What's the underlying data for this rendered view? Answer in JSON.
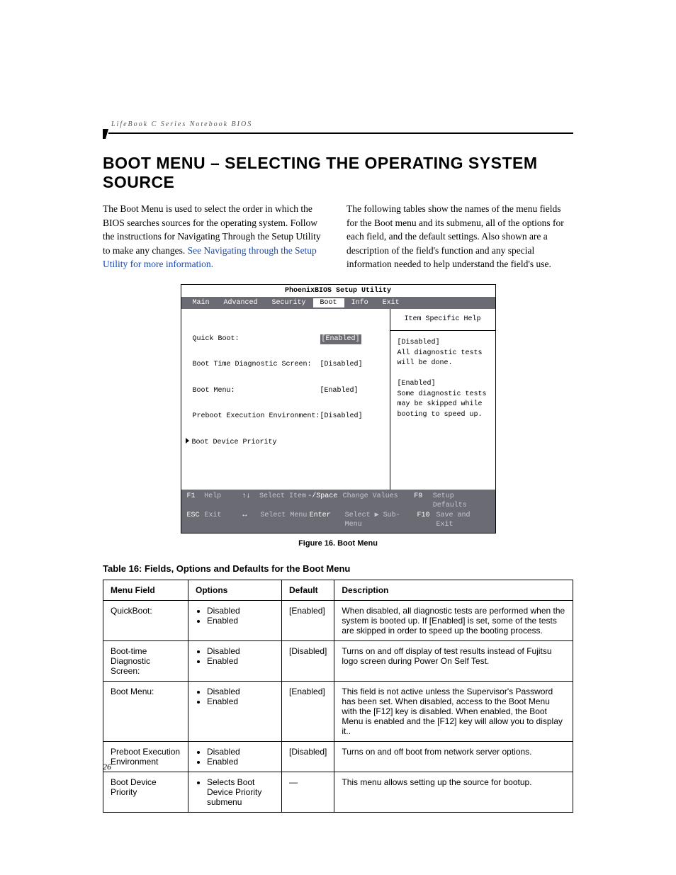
{
  "running_head": "LifeBook C Series Notebook BIOS",
  "title": "BOOT MENU – SELECTING THE OPERATING SYSTEM SOURCE",
  "intro_left_a": "The Boot Menu is used to select the order in which the BIOS searches sources for the operating system. Follow the instructions for Navigating Through the Setup Utility to make any changes. ",
  "intro_left_link": "See Navigating through the Setup Utility for more information.",
  "intro_right": "The following tables show the names of the menu fields for the Boot menu and its submenu, all of the options for each field, and the default settings. Also shown are a description of the field's function and any special information needed to help understand the field's use.",
  "bios": {
    "title": "PhoenixBIOS Setup Utility",
    "tabs": [
      "Main",
      "Advanced",
      "Security",
      "Boot",
      "Info",
      "Exit"
    ],
    "active_tab": "Boot",
    "rows": [
      {
        "label": "Quick Boot:",
        "value": "[Enabled]",
        "hi": true,
        "arrow": false
      },
      {
        "label": "Boot Time Diagnostic Screen:",
        "value": "[Disabled]",
        "hi": false,
        "arrow": false
      },
      {
        "label": "Boot Menu:",
        "value": "[Enabled]",
        "hi": false,
        "arrow": false
      },
      {
        "label": "Preboot Execution Environment:",
        "value": "[Disabled]",
        "hi": false,
        "arrow": false
      },
      {
        "label": "Boot Device Priority",
        "value": "",
        "hi": false,
        "arrow": true
      }
    ],
    "help_title": "Item Specific Help",
    "help_body": "[Disabled]\nAll diagnostic tests will be done.\n\n[Enabled]\nSome diagnostic tests may be skipped while booting to speed up.",
    "footer": [
      [
        "F1",
        "Help",
        "↑↓",
        "Select Item",
        "-/Space",
        "Change Values",
        "F9",
        "Setup Defaults"
      ],
      [
        "ESC",
        "Exit",
        "↔",
        "Select Menu",
        "Enter",
        "Select ▶ Sub-Menu",
        "F10",
        "Save and Exit"
      ]
    ]
  },
  "figure_caption": "Figure 16.  Boot Menu",
  "table_caption": "Table 16: Fields, Options and Defaults for the Boot Menu",
  "table": {
    "headers": [
      "Menu Field",
      "Options",
      "Default",
      "Description"
    ],
    "rows": [
      {
        "field": "QuickBoot:",
        "options": [
          "Disabled",
          "Enabled"
        ],
        "default": "[Enabled]",
        "desc": "When disabled, all diagnostic tests are performed when the system is booted up. If [Enabled] is set, some of the tests are skipped in order to speed up the booting process."
      },
      {
        "field": "Boot-time Diagnostic Screen:",
        "options": [
          "Disabled",
          "Enabled"
        ],
        "default": "[Disabled]",
        "desc": "Turns on and off display of test results instead of Fujitsu logo screen during Power On Self Test."
      },
      {
        "field": "Boot Menu:",
        "options": [
          "Disabled",
          "Enabled"
        ],
        "default": "[Enabled]",
        "desc": "This field is not active unless the Supervisor's Password has been set. When disabled, access to the Boot Menu with the [F12] key is disabled. When enabled, the Boot Menu is enabled and the [F12] key will allow you to display it.."
      },
      {
        "field": "Preboot Execution Environment",
        "options": [
          "Disabled",
          "Enabled"
        ],
        "default": "[Disabled]",
        "desc": "Turns on and off boot from network server options."
      },
      {
        "field": "Boot Device Priority",
        "options": [
          "Selects Boot Device Priority submenu"
        ],
        "default": "—",
        "desc": "This menu allows setting up the source for bootup."
      }
    ]
  },
  "page_number": "26",
  "colors": {
    "bios_bar": "#6b6b73",
    "link": "#1a49b3"
  }
}
